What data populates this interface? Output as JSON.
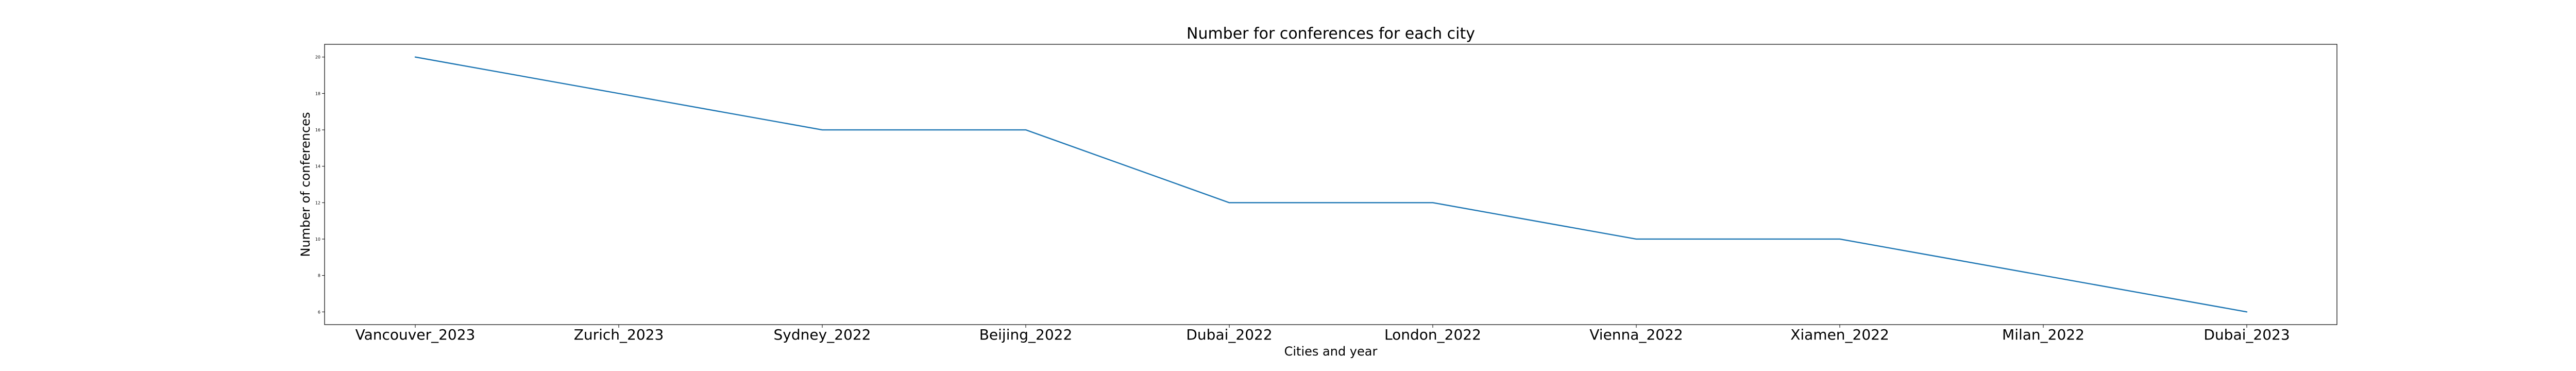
{
  "chart_data": {
    "type": "line",
    "title": "Number for conferences for each city",
    "xlabel": "Cities and year",
    "ylabel": "Number of conferences",
    "categories": [
      "Vancouver_2023",
      "Zurich_2023",
      "Sydney_2022",
      "Beijing_2022",
      "Dubai_2022",
      "London_2022",
      "Vienna_2022",
      "Xiamen_2022",
      "Milan_2022",
      "Dubai_2023"
    ],
    "series": [
      {
        "values": [
          20,
          18,
          16,
          16,
          12,
          12,
          10,
          10,
          8,
          6
        ],
        "color": "#1f77b4"
      }
    ],
    "yticks": [
      6,
      8,
      10,
      12,
      14,
      16,
      18,
      20
    ],
    "ylim": [
      5.3,
      20.7
    ],
    "grid": false,
    "legend": "none"
  }
}
